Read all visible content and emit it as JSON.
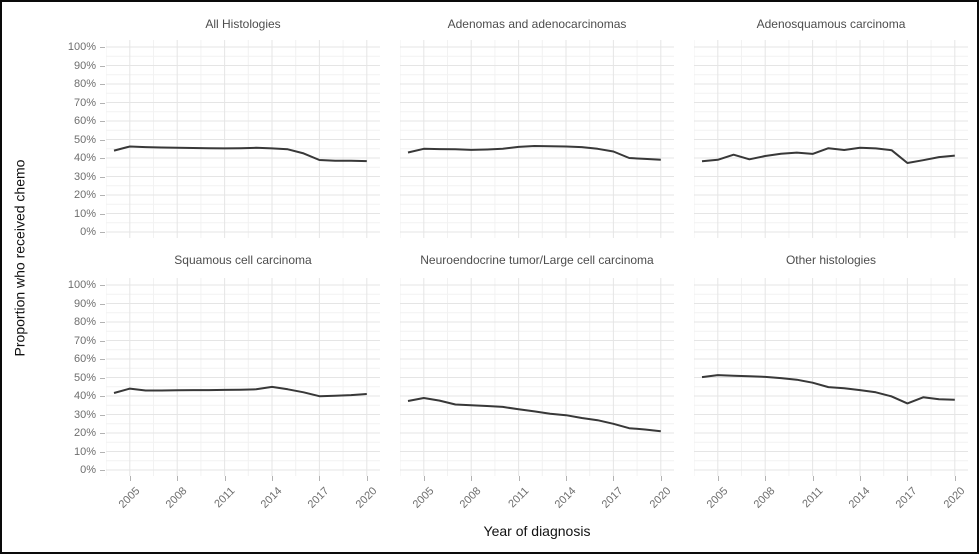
{
  "chart_data": {
    "type": "line",
    "facet_layout": {
      "rows": 2,
      "cols": 3
    },
    "xlabel": "Year of diagnosis",
    "ylabel": "Proportion who received chemo",
    "x": [
      2004,
      2005,
      2006,
      2007,
      2008,
      2009,
      2010,
      2011,
      2012,
      2013,
      2014,
      2015,
      2016,
      2017,
      2018,
      2019,
      2020
    ],
    "x_tick_labels": [
      "2005",
      "2008",
      "2011",
      "2014",
      "2017",
      "2020"
    ],
    "y_tick_labels": [
      "0%",
      "10%",
      "20%",
      "30%",
      "40%",
      "50%",
      "60%",
      "70%",
      "80%",
      "90%",
      "100%"
    ],
    "ylim": [
      0,
      100
    ],
    "grid": "major and minor gridlines, light gray, no axis lines",
    "legend": "none",
    "series": [
      {
        "name": "All Histologies",
        "values": [
          44.0,
          46.2,
          45.9,
          45.7,
          45.5,
          45.4,
          45.3,
          45.2,
          45.3,
          45.5,
          45.2,
          44.7,
          42.5,
          38.9,
          38.5,
          38.5,
          38.3
        ]
      },
      {
        "name": "Adenomas and adenocarcinomas",
        "values": [
          43.0,
          45.0,
          44.8,
          44.7,
          44.4,
          44.6,
          45.0,
          46.0,
          46.5,
          46.4,
          46.2,
          45.9,
          45.0,
          43.5,
          40.0,
          39.5,
          39.0
        ]
      },
      {
        "name": "Adenosquamous carcinoma",
        "values": [
          38.2,
          39.0,
          41.8,
          39.3,
          41.1,
          42.3,
          42.9,
          42.2,
          45.3,
          44.3,
          45.5,
          45.2,
          44.2,
          37.3,
          38.8,
          40.5,
          41.3
        ]
      },
      {
        "name": "Squamous cell carcinoma",
        "values": [
          41.6,
          44.0,
          43.0,
          43.0,
          43.1,
          43.2,
          43.2,
          43.3,
          43.4,
          43.6,
          44.9,
          43.6,
          42.0,
          39.9,
          40.1,
          40.5,
          41.1
        ]
      },
      {
        "name": "Neuroendocrine tumor/Large cell carcinoma",
        "values": [
          37.3,
          38.9,
          37.5,
          35.4,
          35.0,
          34.6,
          34.1,
          32.8,
          31.7,
          30.4,
          29.6,
          28.1,
          26.9,
          25.0,
          22.6,
          21.9,
          21.0
        ]
      },
      {
        "name": "Other histologies",
        "values": [
          50.2,
          51.3,
          51.0,
          50.7,
          50.3,
          49.7,
          48.8,
          47.2,
          44.8,
          44.2,
          43.2,
          42.0,
          39.8,
          36.0,
          39.3,
          38.2,
          38.0
        ]
      }
    ]
  },
  "styles": {
    "line_color": "#383838",
    "grid_major": "#e5e5e5",
    "grid_minor": "#f2f2f2",
    "facet_title_color": "#4d4d4d",
    "tick_label_color": "#6e6e6e",
    "axis_title_color": "#111111",
    "border_color": "#0a0a0a"
  }
}
